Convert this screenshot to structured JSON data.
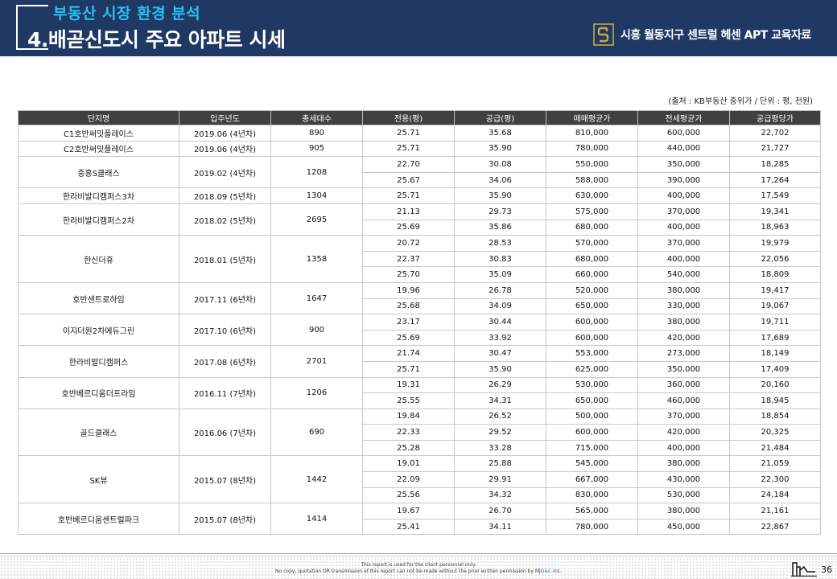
{
  "header": {
    "subtitle": "부동산 시장 환경 분석",
    "title": "4.배곧신도시 주요 아파트 시세",
    "brand": "시흥 월동지구 센트럴 헤센 APT 교육자료",
    "logo_icon": "gold-s-logo-icon"
  },
  "source_note": "(출처 : KB부동산 중위가 / 단위 : 평, 천원)",
  "table": {
    "headers": [
      "단지명",
      "입주년도",
      "총세대수",
      "전용(평)",
      "공급(평)",
      "매매평균가",
      "전세평균가",
      "공급평당가"
    ],
    "complexes": [
      {
        "name": "C1호반써밋플레이스",
        "year": "2019.06 (4년차)",
        "households": "890",
        "rows": [
          {
            "exclusive": "25.71",
            "supply": "35.68",
            "sale": "810,000",
            "jeonse": "600,000",
            "per_pyeong": "22,702"
          }
        ]
      },
      {
        "name": "C2호반써밋플레이스",
        "year": "2019.06 (4년차)",
        "households": "905",
        "rows": [
          {
            "exclusive": "25.71",
            "supply": "35.90",
            "sale": "780,000",
            "jeonse": "440,000",
            "per_pyeong": "21,727"
          }
        ]
      },
      {
        "name": "중흥S클래스",
        "year": "2019.02 (4년차)",
        "households": "1208",
        "rows": [
          {
            "exclusive": "22.70",
            "supply": "30.08",
            "sale": "550,000",
            "jeonse": "350,000",
            "per_pyeong": "18,285"
          },
          {
            "exclusive": "25.67",
            "supply": "34.06",
            "sale": "588,000",
            "jeonse": "390,000",
            "per_pyeong": "17,264"
          }
        ]
      },
      {
        "name": "한라비발디캠퍼스3차",
        "year": "2018.09 (5년차)",
        "households": "1304",
        "rows": [
          {
            "exclusive": "25.71",
            "supply": "35.90",
            "sale": "630,000",
            "jeonse": "400,000",
            "per_pyeong": "17,549"
          }
        ]
      },
      {
        "name": "한라비발디캠퍼스2차",
        "year": "2018.02 (5년차)",
        "households": "2695",
        "rows": [
          {
            "exclusive": "21.13",
            "supply": "29.73",
            "sale": "575,000",
            "jeonse": "370,000",
            "per_pyeong": "19,341"
          },
          {
            "exclusive": "25.69",
            "supply": "35.86",
            "sale": "680,000",
            "jeonse": "400,000",
            "per_pyeong": "18,963"
          }
        ]
      },
      {
        "name": "한신더휴",
        "year": "2018.01 (5년차)",
        "households": "1358",
        "rows": [
          {
            "exclusive": "20.72",
            "supply": "28.53",
            "sale": "570,000",
            "jeonse": "370,000",
            "per_pyeong": "19,979"
          },
          {
            "exclusive": "22.37",
            "supply": "30.83",
            "sale": "680,000",
            "jeonse": "400,000",
            "per_pyeong": "22,056"
          },
          {
            "exclusive": "25.70",
            "supply": "35.09",
            "sale": "660,000",
            "jeonse": "540,000",
            "per_pyeong": "18,809"
          }
        ]
      },
      {
        "name": "호반센트로하임",
        "year": "2017.11 (6년차)",
        "households": "1647",
        "rows": [
          {
            "exclusive": "19.96",
            "supply": "26.78",
            "sale": "520,000",
            "jeonse": "380,000",
            "per_pyeong": "19,417"
          },
          {
            "exclusive": "25.68",
            "supply": "34.09",
            "sale": "650,000",
            "jeonse": "330,000",
            "per_pyeong": "19,067"
          }
        ]
      },
      {
        "name": "이지더원2차에듀그린",
        "year": "2017.10 (6년차)",
        "households": "900",
        "rows": [
          {
            "exclusive": "23.17",
            "supply": "30.44",
            "sale": "600,000",
            "jeonse": "380,000",
            "per_pyeong": "19,711"
          },
          {
            "exclusive": "25.69",
            "supply": "33.92",
            "sale": "600,000",
            "jeonse": "420,000",
            "per_pyeong": "17,689"
          }
        ]
      },
      {
        "name": "한라비발디캠퍼스",
        "year": "2017.08 (6년차)",
        "households": "2701",
        "rows": [
          {
            "exclusive": "21.74",
            "supply": "30.47",
            "sale": "553,000",
            "jeonse": "273,000",
            "per_pyeong": "18,149"
          },
          {
            "exclusive": "25.71",
            "supply": "35.90",
            "sale": "625,000",
            "jeonse": "350,000",
            "per_pyeong": "17,409"
          }
        ]
      },
      {
        "name": "호반베르디움더프라임",
        "year": "2016.11 (7년차)",
        "households": "1206",
        "rows": [
          {
            "exclusive": "19.31",
            "supply": "26.29",
            "sale": "530,000",
            "jeonse": "360,000",
            "per_pyeong": "20,160"
          },
          {
            "exclusive": "25.55",
            "supply": "34.31",
            "sale": "650,000",
            "jeonse": "460,000",
            "per_pyeong": "18,945"
          }
        ]
      },
      {
        "name": "골드클래스",
        "year": "2016.06 (7년차)",
        "households": "690",
        "rows": [
          {
            "exclusive": "19.84",
            "supply": "26.52",
            "sale": "500,000",
            "jeonse": "370,000",
            "per_pyeong": "18,854"
          },
          {
            "exclusive": "22.33",
            "supply": "29.52",
            "sale": "600,000",
            "jeonse": "420,000",
            "per_pyeong": "20,325"
          },
          {
            "exclusive": "25.28",
            "supply": "33.28",
            "sale": "715,000",
            "jeonse": "400,000",
            "per_pyeong": "21,484"
          }
        ]
      },
      {
        "name": "SK뷰",
        "year": "2015.07 (8년차)",
        "households": "1442",
        "rows": [
          {
            "exclusive": "19.01",
            "supply": "25.88",
            "sale": "545,000",
            "jeonse": "380,000",
            "per_pyeong": "21,059"
          },
          {
            "exclusive": "22.09",
            "supply": "29.91",
            "sale": "667,000",
            "jeonse": "430,000",
            "per_pyeong": "22,300"
          },
          {
            "exclusive": "25.56",
            "supply": "34.32",
            "sale": "830,000",
            "jeonse": "530,000",
            "per_pyeong": "24,184"
          }
        ]
      },
      {
        "name": "호반베르디움센트럴파크",
        "year": "2015.07 (8년차)",
        "households": "1414",
        "rows": [
          {
            "exclusive": "19.67",
            "supply": "26.70",
            "sale": "565,000",
            "jeonse": "380,000",
            "per_pyeong": "21,161"
          },
          {
            "exclusive": "25.41",
            "supply": "34.11",
            "sale": "780,000",
            "jeonse": "450,000",
            "per_pyeong": "22,867"
          }
        ]
      }
    ]
  },
  "footer": {
    "line1": "This report is used for the client personnel only.",
    "line2_prefix": "No copy,  quotation OR transmission of this report can not be made without the prior written permission by ",
    "line2_brand_a": "MJ",
    "line2_brand_b": "D&C",
    "line2_suffix": " Inc.",
    "page_number": "36",
    "page_icon": "building-outline-icon"
  }
}
